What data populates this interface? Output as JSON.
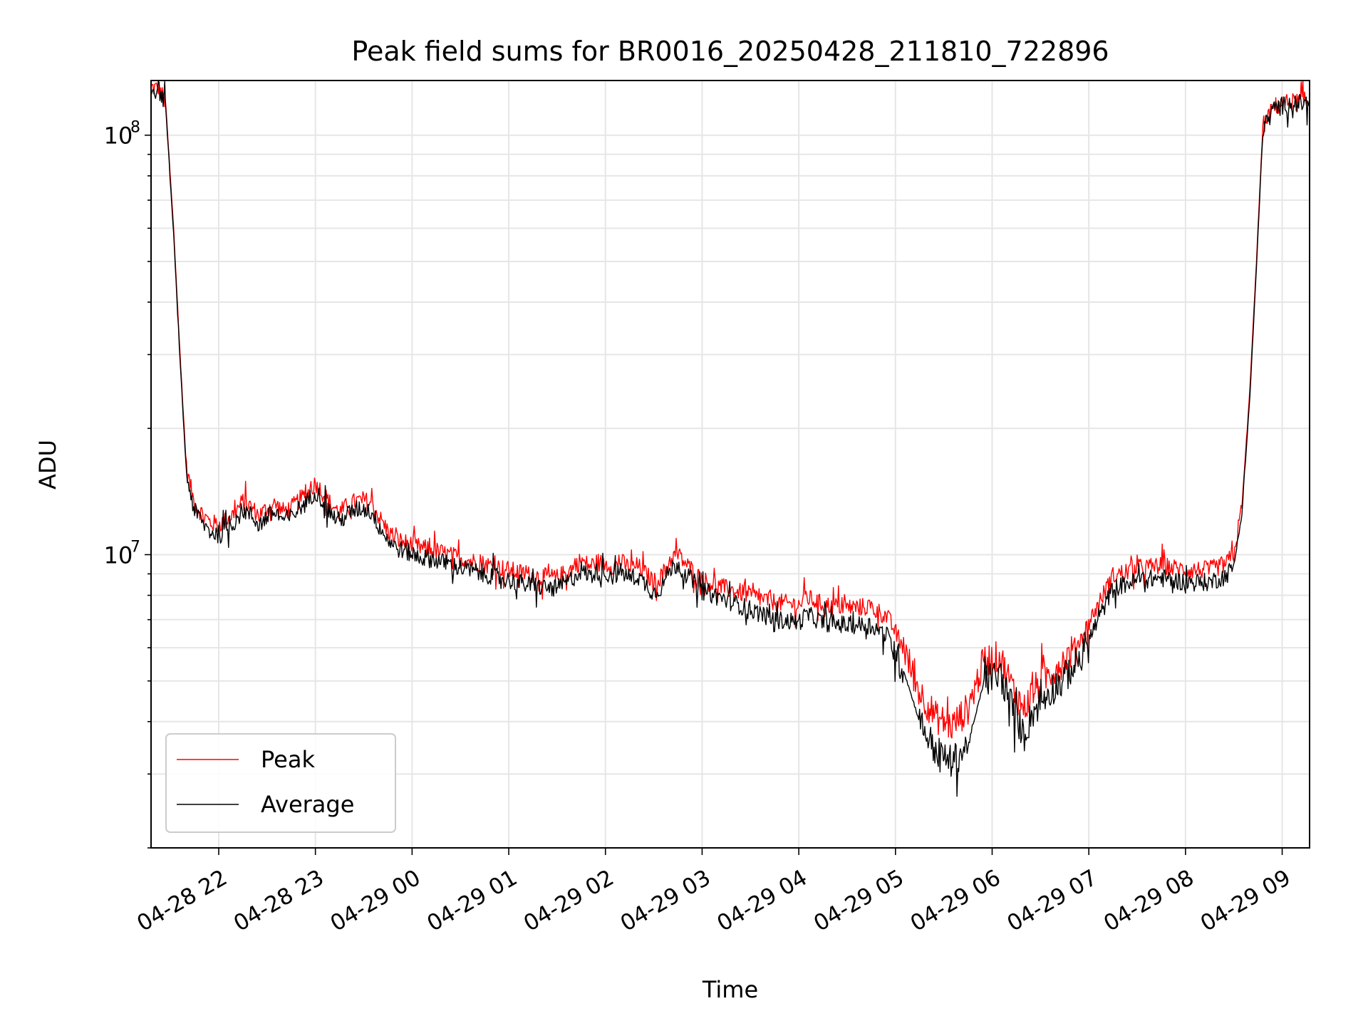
{
  "chart_data": {
    "type": "line",
    "title": "Peak field sums for BR0016_20250428_211810_722896",
    "xlabel": "Time",
    "ylabel": "ADU",
    "yscale": "log",
    "ylim": [
      2000000,
      135000000
    ],
    "xlim": [
      "2025-04-28 21:18",
      "2025-04-29 09:17"
    ],
    "grid": true,
    "legend_position": "lower-left",
    "x_ticks": [
      "04-28 22",
      "04-28 23",
      "04-29 00",
      "04-29 01",
      "04-29 02",
      "04-29 03",
      "04-29 04",
      "04-29 05",
      "04-29 06",
      "04-29 07",
      "04-29 08",
      "04-29 09"
    ],
    "y_ticks": [
      {
        "value": 10000000,
        "base": "10",
        "exp": "7"
      },
      {
        "value": 100000000,
        "base": "10",
        "exp": "8"
      }
    ],
    "series": [
      {
        "name": "Peak",
        "color": "#ff0000",
        "points": [
          [
            "2025-04-28 21:18",
            130000000
          ],
          [
            "2025-04-28 21:23",
            129000000
          ],
          [
            "2025-04-28 21:27",
            120000000
          ],
          [
            "2025-04-28 21:32",
            60000000
          ],
          [
            "2025-04-28 21:36",
            30000000
          ],
          [
            "2025-04-28 21:40",
            16000000
          ],
          [
            "2025-04-28 21:45",
            13200000
          ],
          [
            "2025-04-28 21:50",
            12500000
          ],
          [
            "2025-04-28 21:55",
            11900000
          ],
          [
            "2025-04-28 22:00",
            11800000
          ],
          [
            "2025-04-28 22:05",
            12100000
          ],
          [
            "2025-04-28 22:10",
            12600000
          ],
          [
            "2025-04-28 22:15",
            13400000
          ],
          [
            "2025-04-28 22:20",
            13000000
          ],
          [
            "2025-04-28 22:25",
            12400000
          ],
          [
            "2025-04-28 22:30",
            12900000
          ],
          [
            "2025-04-28 22:35",
            13200000
          ],
          [
            "2025-04-28 22:40",
            12700000
          ],
          [
            "2025-04-28 22:45",
            12900000
          ],
          [
            "2025-04-28 22:50",
            13500000
          ],
          [
            "2025-04-28 22:55",
            14000000
          ],
          [
            "2025-04-28 23:00",
            14800000
          ],
          [
            "2025-04-28 23:05",
            14000000
          ],
          [
            "2025-04-28 23:10",
            13100000
          ],
          [
            "2025-04-28 23:15",
            12600000
          ],
          [
            "2025-04-28 23:20",
            13100000
          ],
          [
            "2025-04-28 23:25",
            13400000
          ],
          [
            "2025-04-28 23:30",
            13500000
          ],
          [
            "2025-04-28 23:35",
            13200000
          ],
          [
            "2025-04-28 23:40",
            12200000
          ],
          [
            "2025-04-28 23:45",
            11400000
          ],
          [
            "2025-04-28 23:50",
            10900000
          ],
          [
            "2025-04-28 23:55",
            10700000
          ],
          [
            "2025-04-29 00:05",
            10400000
          ],
          [
            "2025-04-29 00:15",
            10200000
          ],
          [
            "2025-04-29 00:30",
            9800000
          ],
          [
            "2025-04-29 00:45",
            9500000
          ],
          [
            "2025-04-29 01:00",
            9200000
          ],
          [
            "2025-04-29 01:15",
            8900000
          ],
          [
            "2025-04-29 01:30",
            8800000
          ],
          [
            "2025-04-29 01:40",
            9300000
          ],
          [
            "2025-04-29 01:45",
            9700000
          ],
          [
            "2025-04-29 01:50",
            9400000
          ],
          [
            "2025-04-29 01:55",
            9600000
          ],
          [
            "2025-04-29 02:00",
            9500000
          ],
          [
            "2025-04-29 02:05",
            9400000
          ],
          [
            "2025-04-29 02:10",
            9600000
          ],
          [
            "2025-04-29 02:15",
            9300000
          ],
          [
            "2025-04-29 02:20",
            9400000
          ],
          [
            "2025-04-29 02:25",
            9000000
          ],
          [
            "2025-04-29 02:30",
            8600000
          ],
          [
            "2025-04-29 02:35",
            8900000
          ],
          [
            "2025-04-29 02:40",
            9700000
          ],
          [
            "2025-04-29 02:45",
            10000000
          ],
          [
            "2025-04-29 02:50",
            9500000
          ],
          [
            "2025-04-29 03:00",
            8700000
          ],
          [
            "2025-04-29 03:15",
            8300000
          ],
          [
            "2025-04-29 03:30",
            8000000
          ],
          [
            "2025-04-29 03:45",
            7700000
          ],
          [
            "2025-04-29 04:00",
            7600000
          ],
          [
            "2025-04-29 04:05",
            7900000
          ],
          [
            "2025-04-29 04:15",
            7600000
          ],
          [
            "2025-04-29 04:30",
            7500000
          ],
          [
            "2025-04-29 04:45",
            7500000
          ],
          [
            "2025-04-29 04:55",
            7100000
          ],
          [
            "2025-04-29 05:05",
            6000000
          ],
          [
            "2025-04-29 05:15",
            4700000
          ],
          [
            "2025-04-29 05:25",
            4100000
          ],
          [
            "2025-04-29 05:35",
            3900000
          ],
          [
            "2025-04-29 05:45",
            4300000
          ],
          [
            "2025-04-29 05:55",
            5600000
          ],
          [
            "2025-04-29 06:05",
            5700000
          ],
          [
            "2025-04-29 06:10",
            5100000
          ],
          [
            "2025-04-29 06:15",
            4600000
          ],
          [
            "2025-04-29 06:20",
            4300000
          ],
          [
            "2025-04-29 06:25",
            4700000
          ],
          [
            "2025-04-29 06:35",
            5200000
          ],
          [
            "2025-04-29 06:45",
            5600000
          ],
          [
            "2025-04-29 06:55",
            6300000
          ],
          [
            "2025-04-29 07:05",
            7500000
          ],
          [
            "2025-04-29 07:15",
            8900000
          ],
          [
            "2025-04-29 07:30",
            9300000
          ],
          [
            "2025-04-29 07:45",
            9400000
          ],
          [
            "2025-04-29 08:00",
            9200000
          ],
          [
            "2025-04-29 08:15",
            9200000
          ],
          [
            "2025-04-29 08:25",
            9500000
          ],
          [
            "2025-04-29 08:30",
            10000000
          ],
          [
            "2025-04-29 08:35",
            13000000
          ],
          [
            "2025-04-29 08:40",
            25000000
          ],
          [
            "2025-04-29 08:44",
            50000000
          ],
          [
            "2025-04-29 08:48",
            105000000
          ],
          [
            "2025-04-29 08:55",
            117000000
          ],
          [
            "2025-04-29 09:05",
            120000000
          ],
          [
            "2025-04-29 09:17",
            120000000
          ]
        ]
      },
      {
        "name": "Average",
        "color": "#000000",
        "points": [
          [
            "2025-04-28 21:18",
            129000000
          ],
          [
            "2025-04-28 21:23",
            128000000
          ],
          [
            "2025-04-28 21:27",
            118000000
          ],
          [
            "2025-04-28 21:32",
            58000000
          ],
          [
            "2025-04-28 21:36",
            29000000
          ],
          [
            "2025-04-28 21:40",
            15500000
          ],
          [
            "2025-04-28 21:45",
            12700000
          ],
          [
            "2025-04-28 21:50",
            11900000
          ],
          [
            "2025-04-28 21:55",
            11300000
          ],
          [
            "2025-04-28 22:00",
            11200000
          ],
          [
            "2025-04-28 22:05",
            11500000
          ],
          [
            "2025-04-28 22:10",
            12000000
          ],
          [
            "2025-04-28 22:15",
            12800000
          ],
          [
            "2025-04-28 22:20",
            12400000
          ],
          [
            "2025-04-28 22:25",
            11800000
          ],
          [
            "2025-04-28 22:30",
            12300000
          ],
          [
            "2025-04-28 22:35",
            12600000
          ],
          [
            "2025-04-28 22:40",
            12100000
          ],
          [
            "2025-04-28 22:45",
            12300000
          ],
          [
            "2025-04-28 22:50",
            12900000
          ],
          [
            "2025-04-28 22:55",
            13400000
          ],
          [
            "2025-04-28 23:00",
            14200000
          ],
          [
            "2025-04-28 23:05",
            13400000
          ],
          [
            "2025-04-28 23:10",
            12500000
          ],
          [
            "2025-04-28 23:15",
            12000000
          ],
          [
            "2025-04-28 23:20",
            12500000
          ],
          [
            "2025-04-28 23:25",
            12800000
          ],
          [
            "2025-04-28 23:30",
            12900000
          ],
          [
            "2025-04-28 23:35",
            12600000
          ],
          [
            "2025-04-28 23:40",
            11600000
          ],
          [
            "2025-04-28 23:45",
            10900000
          ],
          [
            "2025-04-28 23:50",
            10400000
          ],
          [
            "2025-04-28 23:55",
            10200000
          ],
          [
            "2025-04-29 00:05",
            9900000
          ],
          [
            "2025-04-29 00:15",
            9700000
          ],
          [
            "2025-04-29 00:30",
            9300000
          ],
          [
            "2025-04-29 00:45",
            9000000
          ],
          [
            "2025-04-29 01:00",
            8700000
          ],
          [
            "2025-04-29 01:15",
            8400000
          ],
          [
            "2025-04-29 01:30",
            8300000
          ],
          [
            "2025-04-29 01:40",
            8800000
          ],
          [
            "2025-04-29 01:45",
            9200000
          ],
          [
            "2025-04-29 01:50",
            8900000
          ],
          [
            "2025-04-29 01:55",
            9100000
          ],
          [
            "2025-04-29 02:00",
            9000000
          ],
          [
            "2025-04-29 02:05",
            8900000
          ],
          [
            "2025-04-29 02:10",
            9100000
          ],
          [
            "2025-04-29 02:15",
            8800000
          ],
          [
            "2025-04-29 02:20",
            8900000
          ],
          [
            "2025-04-29 02:25",
            8500000
          ],
          [
            "2025-04-29 02:30",
            8100000
          ],
          [
            "2025-04-29 02:35",
            8400000
          ],
          [
            "2025-04-29 02:40",
            9200000
          ],
          [
            "2025-04-29 02:45",
            9500000
          ],
          [
            "2025-04-29 02:50",
            9000000
          ],
          [
            "2025-04-29 03:00",
            8200000
          ],
          [
            "2025-04-29 03:15",
            7800000
          ],
          [
            "2025-04-29 03:30",
            7400000
          ],
          [
            "2025-04-29 03:45",
            7000000
          ],
          [
            "2025-04-29 04:00",
            6900000
          ],
          [
            "2025-04-29 04:05",
            7200000
          ],
          [
            "2025-04-29 04:15",
            6900000
          ],
          [
            "2025-04-29 04:30",
            6800000
          ],
          [
            "2025-04-29 04:45",
            6800000
          ],
          [
            "2025-04-29 04:55",
            6400000
          ],
          [
            "2025-04-29 05:05",
            5300000
          ],
          [
            "2025-04-29 05:15",
            4000000
          ],
          [
            "2025-04-29 05:25",
            3400000
          ],
          [
            "2025-04-29 05:35",
            3200000
          ],
          [
            "2025-04-29 05:45",
            3500000
          ],
          [
            "2025-04-29 05:55",
            5000000
          ],
          [
            "2025-04-29 06:05",
            5200000
          ],
          [
            "2025-04-29 06:10",
            4600000
          ],
          [
            "2025-04-29 06:15",
            4100000
          ],
          [
            "2025-04-29 06:20",
            3700000
          ],
          [
            "2025-04-29 06:25",
            4200000
          ],
          [
            "2025-04-29 06:35",
            4700000
          ],
          [
            "2025-04-29 06:45",
            5100000
          ],
          [
            "2025-04-29 06:55",
            5700000
          ],
          [
            "2025-04-29 07:05",
            6900000
          ],
          [
            "2025-04-29 07:15",
            8300000
          ],
          [
            "2025-04-29 07:30",
            8700000
          ],
          [
            "2025-04-29 07:45",
            8800000
          ],
          [
            "2025-04-29 08:00",
            8600000
          ],
          [
            "2025-04-29 08:15",
            8600000
          ],
          [
            "2025-04-29 08:25",
            8900000
          ],
          [
            "2025-04-29 08:30",
            9400000
          ],
          [
            "2025-04-29 08:35",
            12500000
          ],
          [
            "2025-04-29 08:40",
            24000000
          ],
          [
            "2025-04-29 08:44",
            48000000
          ],
          [
            "2025-04-29 08:48",
            103000000
          ],
          [
            "2025-04-29 08:55",
            116000000
          ],
          [
            "2025-04-29 09:05",
            119000000
          ],
          [
            "2025-04-29 09:17",
            119000000
          ]
        ]
      }
    ]
  }
}
